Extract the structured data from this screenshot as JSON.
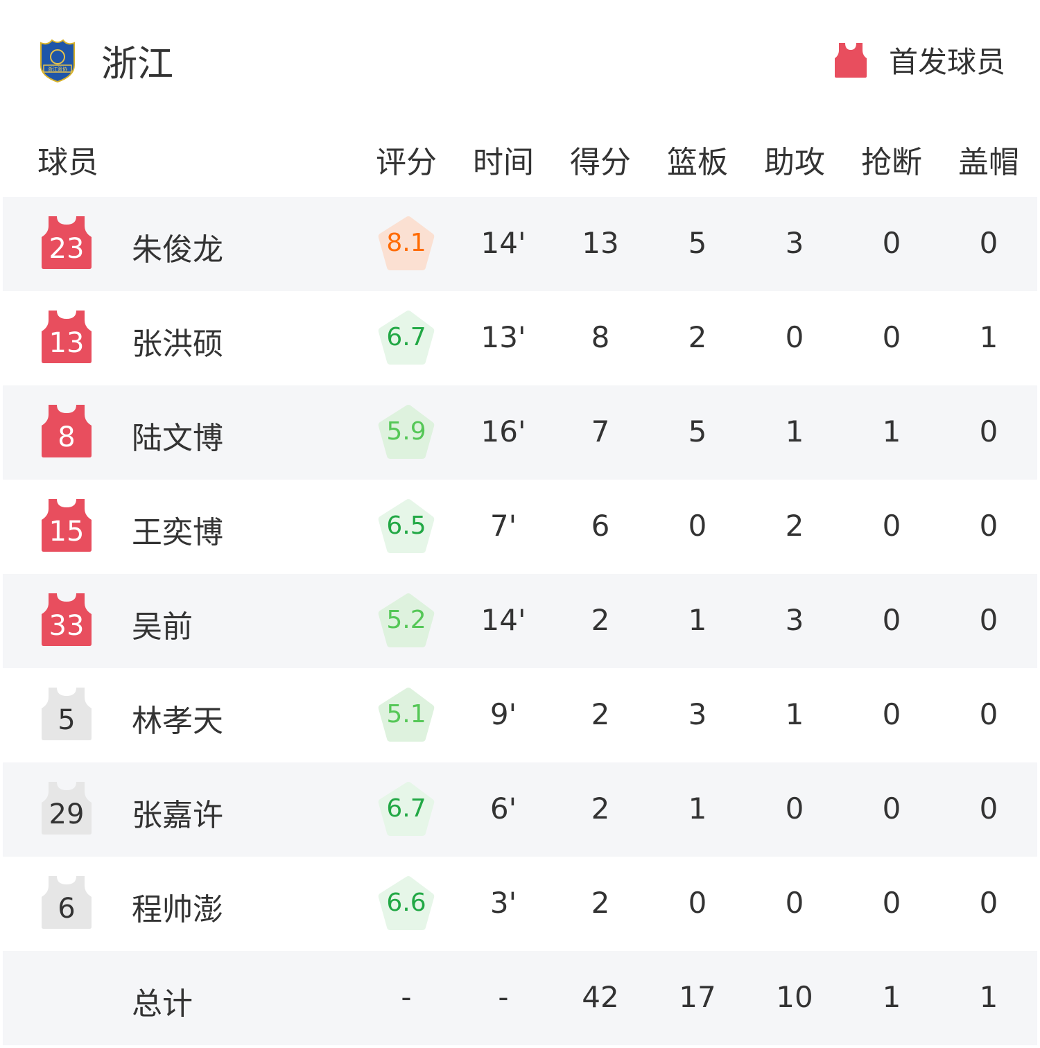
{
  "header": {
    "team_name": "浙江",
    "logo_text": "浙江篮协",
    "legend_label": "首发球员",
    "starter_color": "#e84e5e",
    "bench_color": "#e6e6e6"
  },
  "columns": {
    "player": "球员",
    "rating": "评分",
    "time": "时间",
    "points": "得分",
    "rebounds": "篮板",
    "assists": "助攻",
    "steals": "抢断",
    "blocks": "盖帽"
  },
  "players": [
    {
      "number": "23",
      "name": "朱俊龙",
      "starter": true,
      "rating": "8.1",
      "time": "14'",
      "points": "13",
      "rebounds": "5",
      "assists": "3",
      "steals": "0",
      "blocks": "0"
    },
    {
      "number": "13",
      "name": "张洪硕",
      "starter": true,
      "rating": "6.7",
      "time": "13'",
      "points": "8",
      "rebounds": "2",
      "assists": "0",
      "steals": "0",
      "blocks": "1"
    },
    {
      "number": "8",
      "name": "陆文博",
      "starter": true,
      "rating": "5.9",
      "time": "16'",
      "points": "7",
      "rebounds": "5",
      "assists": "1",
      "steals": "1",
      "blocks": "0"
    },
    {
      "number": "15",
      "name": "王奕博",
      "starter": true,
      "rating": "6.5",
      "time": "7'",
      "points": "6",
      "rebounds": "0",
      "assists": "2",
      "steals": "0",
      "blocks": "0"
    },
    {
      "number": "33",
      "name": "吴前",
      "starter": true,
      "rating": "5.2",
      "time": "14'",
      "points": "2",
      "rebounds": "1",
      "assists": "3",
      "steals": "0",
      "blocks": "0"
    },
    {
      "number": "5",
      "name": "林孝天",
      "starter": false,
      "rating": "5.1",
      "time": "9'",
      "points": "2",
      "rebounds": "3",
      "assists": "1",
      "steals": "0",
      "blocks": "0"
    },
    {
      "number": "29",
      "name": "张嘉许",
      "starter": false,
      "rating": "6.7",
      "time": "6'",
      "points": "2",
      "rebounds": "1",
      "assists": "0",
      "steals": "0",
      "blocks": "0"
    },
    {
      "number": "6",
      "name": "程帅澎",
      "starter": false,
      "rating": "6.6",
      "time": "3'",
      "points": "2",
      "rebounds": "0",
      "assists": "0",
      "steals": "0",
      "blocks": "0"
    }
  ],
  "totals": {
    "label": "总计",
    "rating": "-",
    "time": "-",
    "points": "42",
    "rebounds": "17",
    "assists": "10",
    "steals": "1",
    "blocks": "1"
  }
}
